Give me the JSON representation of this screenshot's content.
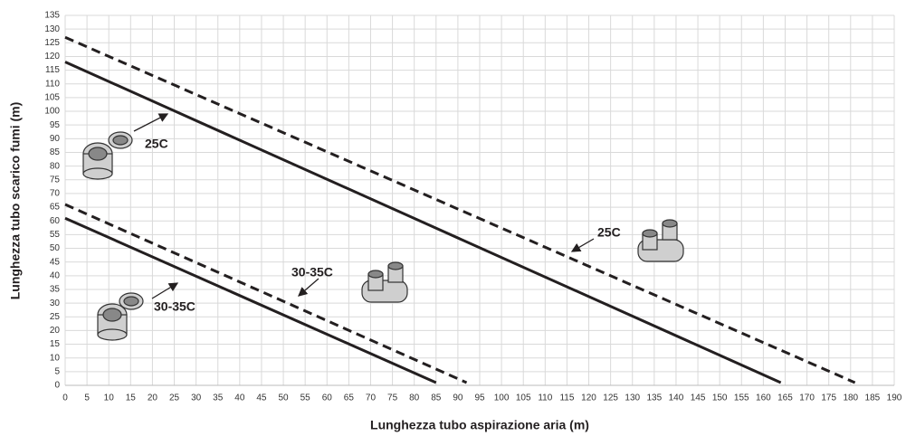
{
  "chart_data": {
    "type": "line",
    "x_label": "Lunghezza tubo aspirazione aria (m)",
    "y_label": "Lunghezza tubo scarico fumi (m)",
    "xlim": [
      0,
      190
    ],
    "ylim": [
      0,
      135
    ],
    "xticks": [
      0,
      5,
      10,
      15,
      20,
      25,
      30,
      35,
      40,
      45,
      50,
      55,
      60,
      65,
      70,
      75,
      80,
      85,
      90,
      95,
      100,
      105,
      110,
      115,
      120,
      125,
      130,
      135,
      140,
      145,
      150,
      155,
      160,
      165,
      170,
      175,
      180,
      185,
      190
    ],
    "yticks": [
      0,
      5,
      10,
      15,
      20,
      25,
      30,
      35,
      40,
      45,
      50,
      55,
      60,
      65,
      70,
      75,
      80,
      85,
      90,
      95,
      100,
      105,
      110,
      115,
      120,
      125,
      130,
      135
    ],
    "grid": true,
    "series": [
      {
        "color": "#231f20",
        "dashed": false,
        "x": [
          0,
          164
        ],
        "values": [
          118,
          1
        ]
      },
      {
        "color": "#231f20",
        "dashed": true,
        "x": [
          0,
          181
        ],
        "values": [
          127,
          1
        ]
      },
      {
        "color": "#231f20",
        "dashed": false,
        "x": [
          0,
          85
        ],
        "values": [
          61,
          1
        ]
      },
      {
        "color": "#231f20",
        "dashed": true,
        "x": [
          0,
          92
        ],
        "values": [
          66,
          1
        ]
      }
    ],
    "annotations": [
      "25C",
      "25C",
      "30-35C",
      "30-35C"
    ]
  }
}
